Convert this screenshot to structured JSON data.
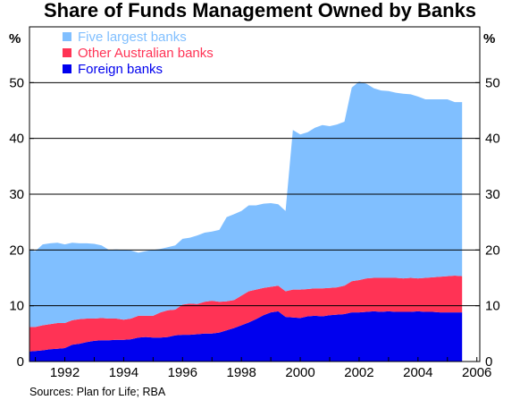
{
  "chart_data": {
    "type": "area",
    "stacked": true,
    "title": "Share of Funds Management Owned by Banks",
    "ylabel_left": "%",
    "ylabel_right": "%",
    "ylim": [
      0,
      60
    ],
    "xlim": [
      1990.8,
      2006.1
    ],
    "yticks": [
      0,
      10,
      20,
      30,
      40,
      50
    ],
    "xticks": [
      1992,
      1994,
      1996,
      1998,
      2000,
      2002,
      2004,
      2006
    ],
    "x": [
      1990.8,
      1991.0,
      1991.25,
      1991.5,
      1991.75,
      1992.0,
      1992.25,
      1992.5,
      1992.75,
      1993.0,
      1993.25,
      1993.5,
      1993.75,
      1994.0,
      1994.25,
      1994.5,
      1994.75,
      1995.0,
      1995.25,
      1995.5,
      1995.75,
      1996.0,
      1996.25,
      1996.5,
      1996.75,
      1997.0,
      1997.25,
      1997.5,
      1997.75,
      1998.0,
      1998.25,
      1998.5,
      1998.75,
      1999.0,
      1999.25,
      1999.5,
      1999.75,
      2000.0,
      2000.25,
      2000.5,
      2000.75,
      2001.0,
      2001.25,
      2001.5,
      2001.75,
      2002.0,
      2002.25,
      2002.5,
      2002.75,
      2003.0,
      2003.25,
      2003.5,
      2003.75,
      2004.0,
      2004.25,
      2004.5,
      2004.75,
      2005.0,
      2005.25,
      2005.5
    ],
    "series": [
      {
        "name": "Foreign banks",
        "color": "#0000ee",
        "values": [
          1.8,
          1.9,
          2.0,
          2.2,
          2.3,
          2.4,
          3.0,
          3.2,
          3.5,
          3.7,
          3.8,
          3.8,
          3.9,
          3.9,
          4.0,
          4.3,
          4.4,
          4.3,
          4.3,
          4.4,
          4.7,
          4.8,
          4.8,
          4.9,
          5.0,
          5.0,
          5.2,
          5.6,
          6.0,
          6.5,
          7.0,
          7.6,
          8.3,
          8.8,
          9.0,
          8.0,
          7.9,
          7.8,
          8.1,
          8.2,
          8.1,
          8.3,
          8.4,
          8.5,
          8.8,
          8.8,
          8.9,
          9.0,
          8.9,
          9.0,
          8.9,
          8.9,
          8.9,
          9.0,
          8.9,
          8.9,
          8.8,
          8.8,
          8.8,
          8.8
        ]
      },
      {
        "name": "Other Australian banks",
        "color": "#ff3355",
        "values": [
          4.4,
          4.3,
          4.5,
          4.5,
          4.6,
          4.5,
          4.4,
          4.4,
          4.2,
          4.0,
          4.0,
          3.9,
          3.8,
          3.6,
          3.7,
          3.9,
          3.8,
          3.9,
          4.5,
          4.8,
          4.6,
          5.4,
          5.6,
          5.4,
          5.7,
          5.9,
          5.5,
          5.2,
          5.0,
          5.3,
          5.6,
          5.3,
          4.9,
          4.6,
          4.6,
          4.6,
          5.0,
          5.1,
          4.9,
          4.9,
          5.0,
          4.9,
          4.9,
          5.1,
          5.6,
          5.8,
          6.0,
          6.0,
          6.1,
          6.0,
          6.1,
          6.0,
          6.1,
          5.9,
          6.1,
          6.2,
          6.4,
          6.5,
          6.6,
          6.5
        ]
      },
      {
        "name": "Five largest banks",
        "color": "#80bfff",
        "values": [
          13.8,
          13.6,
          14.5,
          14.5,
          14.4,
          14.1,
          13.9,
          13.6,
          13.5,
          13.4,
          13.0,
          12.3,
          12.4,
          12.5,
          12.2,
          11.3,
          11.6,
          11.8,
          11.4,
          11.3,
          11.5,
          11.8,
          11.8,
          12.3,
          12.4,
          12.4,
          12.9,
          15.1,
          15.4,
          15.2,
          15.4,
          15.1,
          15.1,
          15.0,
          14.6,
          14.4,
          28.6,
          27.8,
          28.1,
          28.8,
          29.3,
          29.0,
          29.2,
          29.4,
          34.7,
          35.6,
          34.9,
          34.0,
          33.6,
          33.5,
          33.2,
          33.1,
          32.9,
          32.6,
          32.0,
          31.9,
          31.8,
          31.7,
          31.1,
          31.2
        ]
      }
    ],
    "legend_position": "top-left",
    "source_note": "Sources: Plan for Life; RBA"
  }
}
